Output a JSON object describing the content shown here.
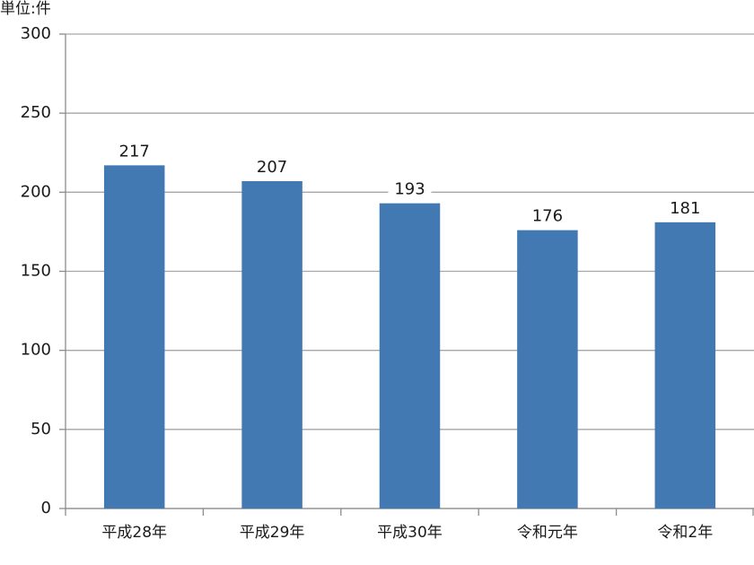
{
  "chart_data": {
    "type": "bar",
    "unit_label": "単位:件",
    "categories": [
      "平成28年",
      "平成29年",
      "平成30年",
      "令和元年",
      "令和2年"
    ],
    "values": [
      217,
      207,
      193,
      176,
      181
    ],
    "color": "#4279b3",
    "ylim": [
      0,
      300
    ],
    "yticks": [
      0,
      50,
      100,
      150,
      200,
      250,
      300
    ],
    "grid": true
  }
}
